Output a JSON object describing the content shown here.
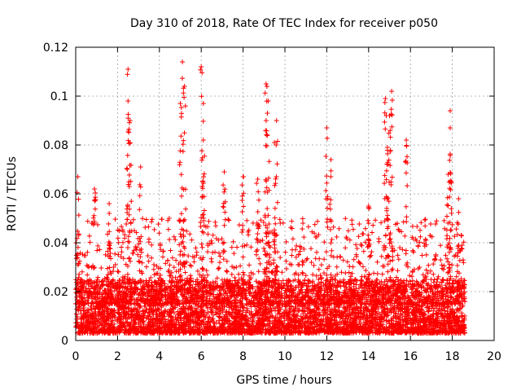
{
  "chart_data": {
    "type": "scatter",
    "title": "Day 310 of 2018, Rate Of TEC Index for receiver p050",
    "xlabel": "GPS time / hours",
    "ylabel": "ROTI / TECUs",
    "xlim": [
      0,
      20
    ],
    "ylim": [
      0,
      0.12
    ],
    "x_ticks": [
      "0",
      "2",
      "4",
      "6",
      "8",
      "10",
      "12",
      "14",
      "16",
      "18",
      "20"
    ],
    "y_ticks": [
      "0",
      "0.02",
      "0.04",
      "0.06",
      "0.08",
      "0.1",
      "0.12"
    ],
    "grid": true,
    "marker": "+",
    "series_color": "#ff0000",
    "series": [
      {
        "name": "ROTI",
        "x_range": [
          0,
          18.6
        ],
        "notable_peaks": [
          {
            "x": 0.1,
            "y": 0.067
          },
          {
            "x": 0.9,
            "y": 0.062
          },
          {
            "x": 1.6,
            "y": 0.056
          },
          {
            "x": 2.5,
            "y": 0.111
          },
          {
            "x": 2.5,
            "y": 0.098
          },
          {
            "x": 2.6,
            "y": 0.09
          },
          {
            "x": 3.1,
            "y": 0.071
          },
          {
            "x": 5.1,
            "y": 0.114
          },
          {
            "x": 5.2,
            "y": 0.104
          },
          {
            "x": 5.0,
            "y": 0.097
          },
          {
            "x": 6.0,
            "y": 0.112
          },
          {
            "x": 6.1,
            "y": 0.097
          },
          {
            "x": 6.1,
            "y": 0.082
          },
          {
            "x": 7.1,
            "y": 0.069
          },
          {
            "x": 8.0,
            "y": 0.067
          },
          {
            "x": 8.7,
            "y": 0.066
          },
          {
            "x": 9.1,
            "y": 0.105
          },
          {
            "x": 9.2,
            "y": 0.098
          },
          {
            "x": 9.1,
            "y": 0.09
          },
          {
            "x": 9.6,
            "y": 0.09
          },
          {
            "x": 9.5,
            "y": 0.081
          },
          {
            "x": 12.0,
            "y": 0.087
          },
          {
            "x": 12.2,
            "y": 0.074
          },
          {
            "x": 14.0,
            "y": 0.055
          },
          {
            "x": 14.8,
            "y": 0.099
          },
          {
            "x": 15.1,
            "y": 0.102
          },
          {
            "x": 15.0,
            "y": 0.092
          },
          {
            "x": 14.9,
            "y": 0.079
          },
          {
            "x": 15.8,
            "y": 0.082
          },
          {
            "x": 17.9,
            "y": 0.094
          },
          {
            "x": 17.9,
            "y": 0.087
          },
          {
            "x": 17.8,
            "y": 0.068
          },
          {
            "x": 18.3,
            "y": 0.058
          }
        ],
        "baseline_range": [
          0.003,
          0.025
        ]
      }
    ]
  }
}
